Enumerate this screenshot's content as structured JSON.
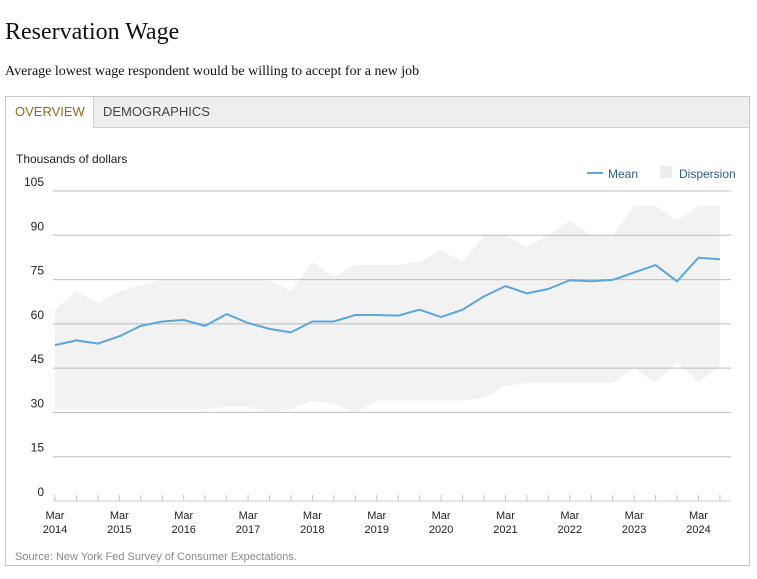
{
  "page": {
    "title": "Reservation Wage",
    "subtitle": "Average lowest wage respondent would be willing to accept for a new job"
  },
  "tabs": [
    {
      "label": "OVERVIEW",
      "active": true
    },
    {
      "label": "DEMOGRAPHICS",
      "active": false
    }
  ],
  "source": "Source: New York Fed Survey of Consumer Expectations.",
  "colors": {
    "mean_line": "#5ba7dc",
    "dispersion_band": "#f2f2f2",
    "active_tab": "#9a6a1c",
    "legend_text": "#2f5d8a"
  },
  "chart_data": {
    "type": "line",
    "ylabel": "Thousands of dollars",
    "ylim": [
      0,
      105
    ],
    "yticks": [
      0,
      15,
      30,
      45,
      60,
      75,
      90,
      105
    ],
    "grid": true,
    "legend_position": "top-right",
    "legend": [
      {
        "label": "Mean",
        "kind": "line"
      },
      {
        "label": "Dispersion",
        "kind": "band"
      }
    ],
    "xtick_labels": [
      {
        "month": "Mar",
        "year": "2014"
      },
      {
        "month": "Mar",
        "year": "2015"
      },
      {
        "month": "Mar",
        "year": "2016"
      },
      {
        "month": "Mar",
        "year": "2017"
      },
      {
        "month": "Mar",
        "year": "2018"
      },
      {
        "month": "Mar",
        "year": "2019"
      },
      {
        "month": "Mar",
        "year": "2020"
      },
      {
        "month": "Mar",
        "year": "2021"
      },
      {
        "month": "Mar",
        "year": "2022"
      },
      {
        "month": "Mar",
        "year": "2023"
      },
      {
        "month": "Mar",
        "year": "2024"
      }
    ],
    "x": [
      "Mar 2014",
      "Jul 2014",
      "Nov 2014",
      "Mar 2015",
      "Jul 2015",
      "Nov 2015",
      "Mar 2016",
      "Jul 2016",
      "Nov 2016",
      "Mar 2017",
      "Jul 2017",
      "Nov 2017",
      "Mar 2018",
      "Jul 2018",
      "Nov 2018",
      "Mar 2019",
      "Jul 2019",
      "Nov 2019",
      "Mar 2020",
      "Jul 2020",
      "Nov 2020",
      "Mar 2021",
      "Jul 2021",
      "Nov 2021",
      "Mar 2022",
      "Jul 2022",
      "Nov 2022",
      "Mar 2023",
      "Jul 2023",
      "Nov 2023",
      "Mar 2024",
      "Jul 2024"
    ],
    "series": [
      {
        "name": "Mean",
        "values": [
          52.8,
          54.4,
          53.3,
          55.8,
          59.3,
          60.8,
          61.3,
          59.3,
          63.3,
          60.3,
          58.3,
          57.1,
          60.8,
          60.8,
          63.0,
          63.0,
          62.8,
          64.8,
          62.3,
          64.8,
          69.3,
          72.8,
          70.3,
          71.8,
          74.8,
          74.4,
          74.9,
          77.4,
          79.9,
          74.4,
          82.4,
          81.9
        ]
      },
      {
        "name": "Dispersion",
        "upper": [
          65.0,
          71.0,
          67.0,
          71.0,
          73.0,
          75.0,
          75.0,
          75.0,
          75.0,
          75.0,
          75.0,
          71.0,
          81.0,
          76.0,
          80.0,
          80.0,
          80.0,
          81.0,
          85.0,
          81.0,
          90.0,
          90.0,
          86.0,
          90.0,
          95.0,
          90.0,
          90.0,
          100.0,
          100.0,
          95.0,
          100.0,
          100.0
        ],
        "lower": [
          31.0,
          31.0,
          31.0,
          31.0,
          31.0,
          31.0,
          31.0,
          31.0,
          32.0,
          32.0,
          30.0,
          31.0,
          34.0,
          33.0,
          30.0,
          34.0,
          34.0,
          34.0,
          34.0,
          34.0,
          35.0,
          39.0,
          40.0,
          40.0,
          40.0,
          40.0,
          40.0,
          45.0,
          40.0,
          47.0,
          40.0,
          46.0
        ]
      }
    ]
  }
}
